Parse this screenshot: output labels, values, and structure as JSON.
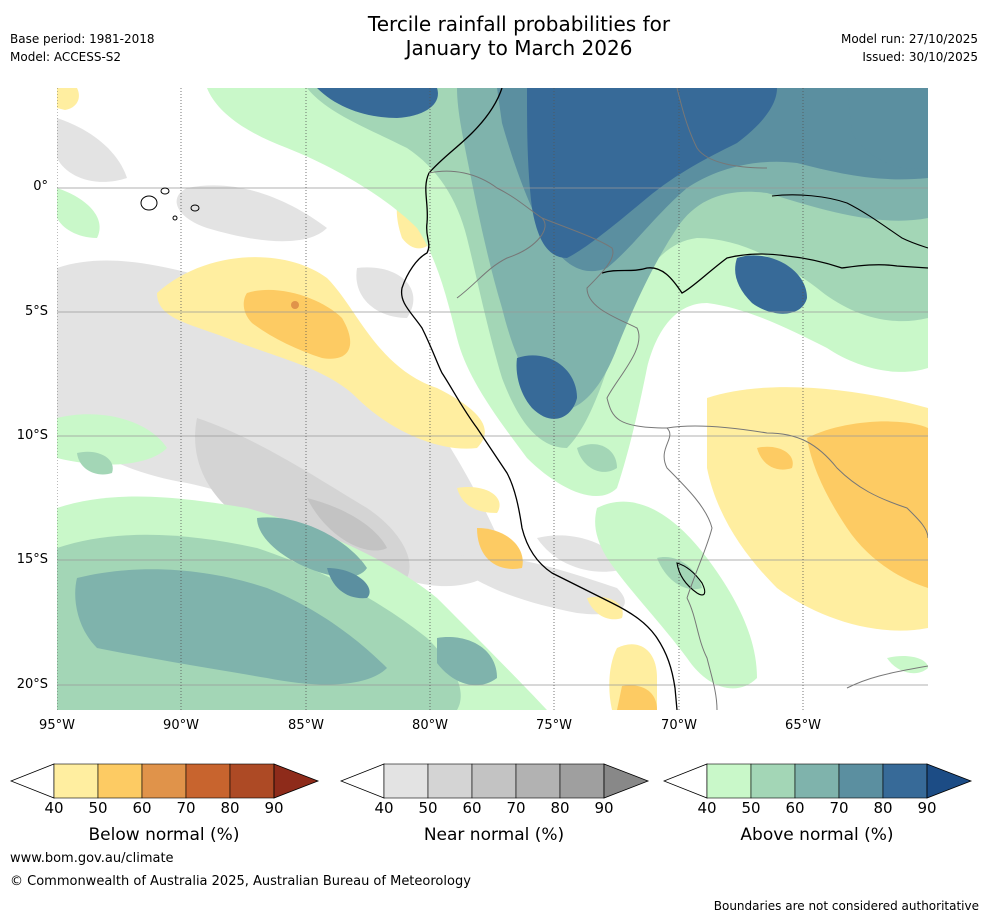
{
  "title": {
    "line1": "Tercile rainfall probabilities for",
    "line2": "January to March 2026"
  },
  "meta": {
    "base_period": "Base period: 1981-2018",
    "model": "Model: ACCESS-S2",
    "model_run": "Model run: 27/10/2025",
    "issued": "Issued: 30/10/2025"
  },
  "axes": {
    "lat_labels": [
      "0°",
      "5°S",
      "10°S",
      "15°S",
      "20°S"
    ],
    "lon_labels": [
      "95°W",
      "90°W",
      "85°W",
      "80°W",
      "75°W",
      "70°W",
      "65°W"
    ]
  },
  "colorbars": [
    {
      "label": "Below normal (%)",
      "ticks": [
        "40",
        "50",
        "60",
        "70",
        "80",
        "90"
      ],
      "colors": [
        "#ffeea0",
        "#fdcb63",
        "#e0934a",
        "#c8642e",
        "#ad4a25",
        "#8e2b1a"
      ]
    },
    {
      "label": "Near normal (%)",
      "ticks": [
        "40",
        "50",
        "60",
        "70",
        "80",
        "90"
      ],
      "colors": [
        "#e3e3e3",
        "#d4d4d4",
        "#c3c3c3",
        "#b2b2b2",
        "#9f9f9f",
        "#888888"
      ]
    },
    {
      "label": "Above normal (%)",
      "ticks": [
        "40",
        "50",
        "60",
        "70",
        "80",
        "90"
      ],
      "colors": [
        "#c9f8c9",
        "#a3d6b6",
        "#7fb3ac",
        "#5b8fa0",
        "#376a98",
        "#1c4c85"
      ]
    }
  ],
  "footer": {
    "website": "www.bom.gov.au/climate",
    "copyright": "© Commonwealth of Australia 2025, Australian Bureau of Meteorology",
    "disclaimer": "Boundaries are not considered authoritative"
  }
}
